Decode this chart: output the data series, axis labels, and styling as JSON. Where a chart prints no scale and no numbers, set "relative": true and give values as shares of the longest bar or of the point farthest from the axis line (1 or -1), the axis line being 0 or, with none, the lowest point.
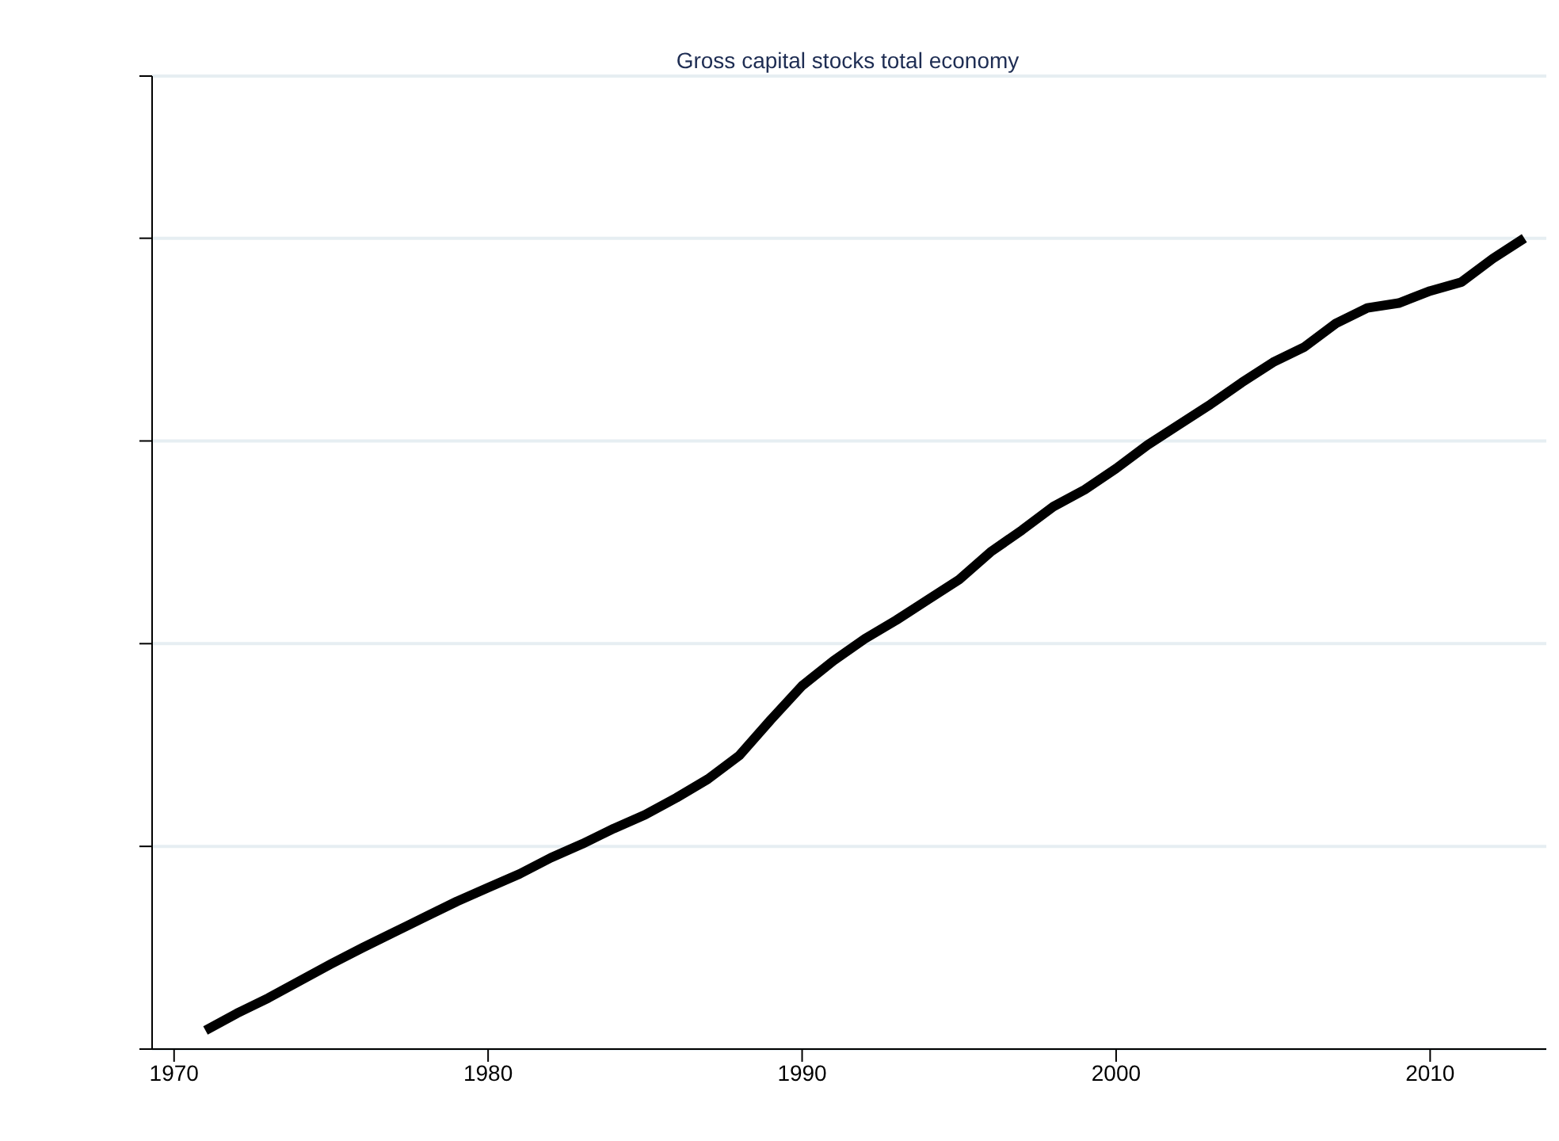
{
  "chart_data": {
    "type": "line",
    "title": "Gross capital stocks total economy",
    "relative": true,
    "x": [
      1971,
      1972,
      1973,
      1974,
      1975,
      1976,
      1977,
      1978,
      1979,
      1980,
      1981,
      1982,
      1983,
      1984,
      1985,
      1986,
      1987,
      1988,
      1989,
      1990,
      1991,
      1992,
      1993,
      1994,
      1995,
      1996,
      1997,
      1998,
      1999,
      2000,
      2001,
      2002,
      2003,
      2004,
      2005,
      2006,
      2007,
      2008,
      2009,
      2010,
      2011,
      2012,
      2013
    ],
    "series": [
      {
        "color": "#000000",
        "values": [
          0.023,
          0.044,
          0.063,
          0.084,
          0.105,
          0.125,
          0.144,
          0.163,
          0.182,
          0.199,
          0.216,
          0.236,
          0.253,
          0.272,
          0.289,
          0.31,
          0.333,
          0.362,
          0.406,
          0.448,
          0.479,
          0.506,
          0.529,
          0.554,
          0.579,
          0.613,
          0.64,
          0.669,
          0.69,
          0.716,
          0.745,
          0.77,
          0.795,
          0.822,
          0.847,
          0.866,
          0.895,
          0.914,
          0.92,
          0.935,
          0.946,
          0.975,
          1
        ]
      }
    ],
    "xlim": [
      1969.3,
      2013.7
    ],
    "xticks": [
      1970,
      1980,
      1990,
      2000,
      2010
    ],
    "grid": "y",
    "marker": "none",
    "line_style": "solid",
    "legend": false
  }
}
